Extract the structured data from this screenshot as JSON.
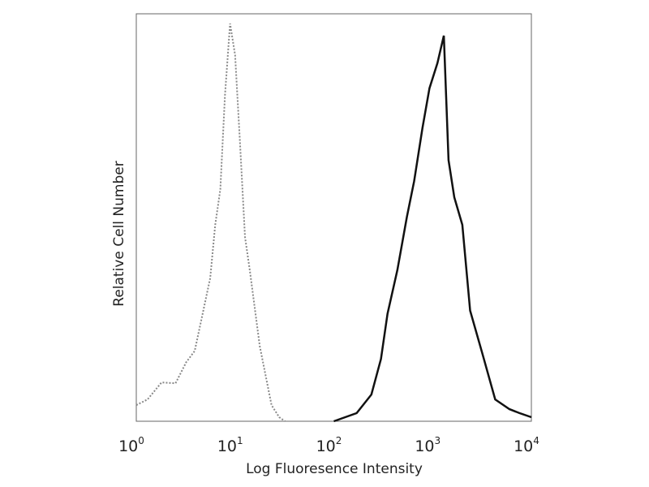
{
  "chart_data": {
    "type": "line",
    "title": "",
    "xlabel": "Log Fluoresence Intensity",
    "ylabel": "Relative Cell Number",
    "xscale": "log",
    "xlim": [
      1,
      10000
    ],
    "ylim": [
      0,
      100
    ],
    "grid": false,
    "legend": "none",
    "x_ticks": [
      {
        "base": "10",
        "exp": "0"
      },
      {
        "base": "10",
        "exp": "1"
      },
      {
        "base": "10",
        "exp": "2"
      },
      {
        "base": "10",
        "exp": "3"
      },
      {
        "base": "10",
        "exp": "4"
      }
    ],
    "series": [
      {
        "style": "dotted",
        "color": "#888888",
        "x": [
          1,
          1.3,
          1.8,
          2.5,
          3.2,
          3.9,
          4.7,
          5.6,
          6.3,
          7.1,
          7.9,
          8.9,
          10,
          11.2,
          12.6,
          14.1,
          17.8,
          23.4,
          28,
          32
        ],
        "y": [
          4,
          6,
          9,
          10,
          14,
          18,
          26,
          36,
          48,
          58,
          80,
          99,
          90,
          70,
          45,
          38,
          18,
          4,
          1,
          0
        ]
      },
      {
        "style": "solid",
        "color": "#111111",
        "x": [
          100,
          170,
          240,
          300,
          350,
          440,
          550,
          650,
          790,
          930,
          1120,
          1300,
          1450,
          1660,
          2000,
          2400,
          3200,
          4300,
          6000,
          7600,
          10000
        ],
        "y": [
          0,
          2,
          6,
          16,
          26,
          38,
          50,
          60,
          72,
          83,
          88,
          96,
          64,
          56,
          48,
          28,
          16,
          6,
          3,
          2,
          1
        ]
      }
    ]
  }
}
